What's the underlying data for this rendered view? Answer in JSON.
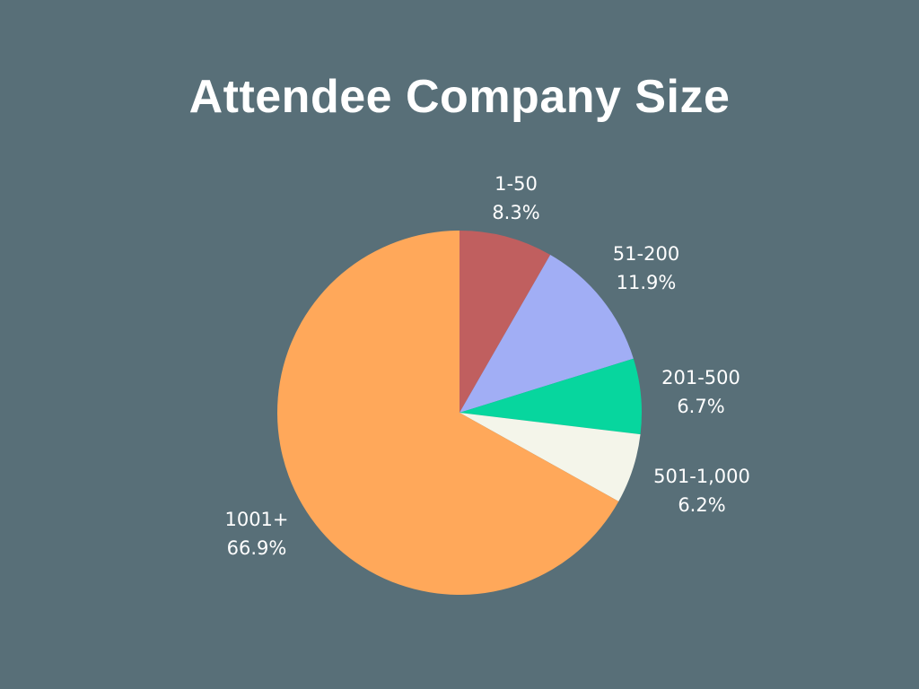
{
  "chart_data": {
    "type": "pie",
    "title": "Attendee Company Size",
    "slices": [
      {
        "label": "1-50",
        "value": 8.3,
        "value_label": "8.3%",
        "color": "#c05f5f"
      },
      {
        "label": "51-200",
        "value": 11.9,
        "value_label": "11.9%",
        "color": "#a1aef5"
      },
      {
        "label": "201-500",
        "value": 6.7,
        "value_label": "6.7%",
        "color": "#07d69e"
      },
      {
        "label": "501-1,000",
        "value": 6.2,
        "value_label": "6.2%",
        "color": "#f4f5ea"
      },
      {
        "label": "1001+",
        "value": 66.9,
        "value_label": "66.9%",
        "color": "#ffa85a"
      }
    ],
    "start_angle": "12 o'clock",
    "direction": "clockwise",
    "legend": "none",
    "background": "#586f78"
  }
}
